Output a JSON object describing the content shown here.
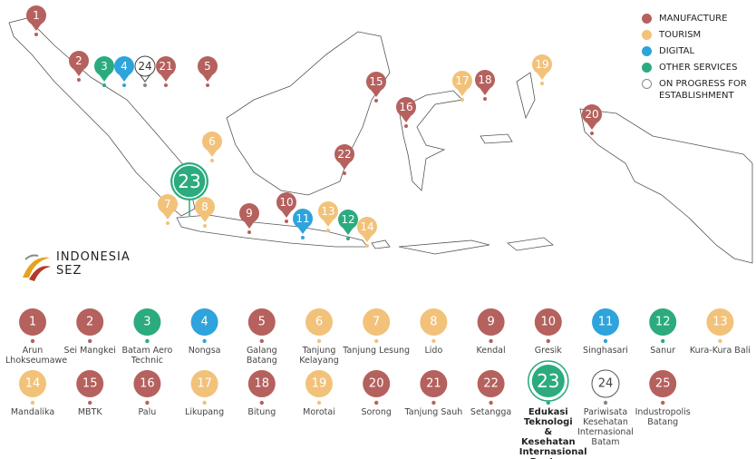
{
  "legend": [
    {
      "label": "MANUFACTURE",
      "color": "#b5615e"
    },
    {
      "label": "TOURISM",
      "color": "#f2c27a"
    },
    {
      "label": "DIGITAL",
      "color": "#2ea3dc"
    },
    {
      "label": "OTHER SERVICES",
      "color": "#2bab7e"
    },
    {
      "label": "ON PROGRESS FOR ESTABLISHMENT",
      "color": "#ffffff"
    }
  ],
  "logo": {
    "line1": "INDONESIA",
    "line2": "SEZ"
  },
  "zones": [
    {
      "number": "1",
      "name": "Arun Lhokseumawe",
      "color": "#b5615e"
    },
    {
      "number": "2",
      "name": "Sei Mangkei",
      "color": "#b5615e"
    },
    {
      "number": "3",
      "name": "Batam Aero Technic",
      "color": "#2bab7e"
    },
    {
      "number": "4",
      "name": "Nongsa",
      "color": "#2ea3dc"
    },
    {
      "number": "5",
      "name": "Galang Batang",
      "color": "#b5615e"
    },
    {
      "number": "6",
      "name": "Tanjung Kelayang",
      "color": "#f2c27a"
    },
    {
      "number": "7",
      "name": "Tanjung Lesung",
      "color": "#f2c27a"
    },
    {
      "number": "8",
      "name": "Lido",
      "color": "#f2c27a"
    },
    {
      "number": "9",
      "name": "Kendal",
      "color": "#b5615e"
    },
    {
      "number": "10",
      "name": "Gresik",
      "color": "#b5615e"
    },
    {
      "number": "11",
      "name": "Singhasari",
      "color": "#2ea3dc"
    },
    {
      "number": "12",
      "name": "Sanur",
      "color": "#2bab7e"
    },
    {
      "number": "13",
      "name": "Kura-Kura Bali",
      "color": "#f2c27a"
    },
    {
      "number": "14",
      "name": "Mandalika",
      "color": "#f2c27a"
    },
    {
      "number": "15",
      "name": "MBTK",
      "color": "#b5615e"
    },
    {
      "number": "16",
      "name": "Palu",
      "color": "#b5615e"
    },
    {
      "number": "17",
      "name": "Likupang",
      "color": "#f2c27a"
    },
    {
      "number": "18",
      "name": "Bitung",
      "color": "#b5615e"
    },
    {
      "number": "19",
      "name": "Morotai",
      "color": "#f2c27a"
    },
    {
      "number": "20",
      "name": "Sorong",
      "color": "#b5615e"
    },
    {
      "number": "21",
      "name": "Tanjung Sauh",
      "color": "#b5615e"
    },
    {
      "number": "22",
      "name": "Setangga",
      "color": "#b5615e"
    },
    {
      "number": "23",
      "name": "Edukasi Teknologi & Kesehatan Internasional Banten",
      "color": "#2bab7e"
    },
    {
      "number": "24",
      "name": "Pariwisata Kesehatan Internasional Batam",
      "color": "#ffffff"
    },
    {
      "number": "25",
      "name": "Industropolis Batang",
      "color": "#b5615e"
    }
  ]
}
